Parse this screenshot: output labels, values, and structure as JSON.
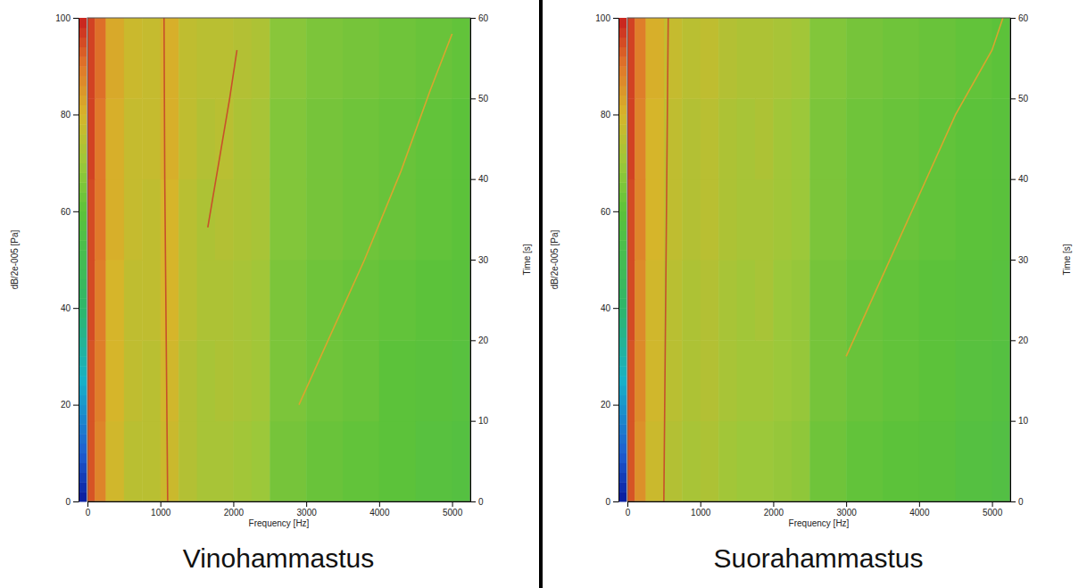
{
  "chart_data": [
    {
      "type": "heatmap",
      "title": "Vinohammastus",
      "x_label": "Frequency [Hz]",
      "y_label": "Time [s]",
      "colorbar_label": "dB/2e-005 [Pa]",
      "xlim": [
        0,
        5250
      ],
      "xticks": [
        0,
        1000,
        2000,
        3000,
        4000,
        5000
      ],
      "ylim": [
        0,
        60
      ],
      "yticks": [
        0,
        10,
        20,
        30,
        40,
        50,
        60
      ],
      "colorbar_range": [
        0,
        100
      ],
      "colorbar_ticks": [
        0,
        20,
        40,
        60,
        80,
        100
      ],
      "x_edges": [
        0,
        100,
        250,
        500,
        750,
        1000,
        1250,
        1500,
        1750,
        2000,
        2250,
        2500,
        3000,
        3500,
        4000,
        4500,
        5000,
        5250
      ],
      "y_edges": [
        0,
        10,
        20,
        30,
        40,
        50,
        60
      ],
      "cells": [
        [
          94,
          88,
          79,
          75,
          75,
          78,
          74,
          72,
          72,
          71,
          70,
          64,
          62,
          61,
          60,
          58,
          57
        ],
        [
          94,
          89,
          80,
          76,
          75,
          79,
          74,
          72,
          73,
          72,
          71,
          65,
          63,
          62,
          60,
          59,
          58
        ],
        [
          95,
          89,
          80,
          76,
          76,
          80,
          75,
          73,
          73,
          72,
          71,
          65,
          63,
          62,
          61,
          60,
          59
        ],
        [
          95,
          90,
          81,
          77,
          76,
          80,
          75,
          73,
          74,
          73,
          72,
          66,
          64,
          63,
          62,
          61,
          60
        ],
        [
          96,
          90,
          81,
          77,
          77,
          81,
          76,
          74,
          75,
          73,
          72,
          66,
          64,
          63,
          62,
          61,
          60
        ],
        [
          96,
          91,
          82,
          78,
          77,
          81,
          76,
          75,
          75,
          74,
          73,
          67,
          65,
          64,
          63,
          62,
          61
        ]
      ],
      "series": [
        {
          "color": "#d9a52e",
          "x": [
            2900,
            3300,
            3800,
            4300,
            4700,
            5000
          ],
          "values": [
            12,
            20,
            30,
            41,
            51,
            58
          ]
        },
        {
          "color": "#c8502a",
          "x": [
            1650,
            1800,
            1950,
            2050
          ],
          "values": [
            34,
            42,
            50,
            56
          ]
        },
        {
          "color": "#c8502a",
          "x": [
            1100,
            1080,
            1060,
            1050
          ],
          "values": [
            0,
            20,
            40,
            60
          ]
        }
      ]
    },
    {
      "type": "heatmap",
      "title": "Suorahammastus",
      "x_label": "Frequency [Hz]",
      "y_label": "Time [s]",
      "colorbar_label": "dB/2e-005 [Pa]",
      "xlim": [
        0,
        5250
      ],
      "xticks": [
        0,
        1000,
        2000,
        3000,
        4000,
        5000
      ],
      "ylim": [
        0,
        60
      ],
      "yticks": [
        0,
        10,
        20,
        30,
        40,
        50,
        60
      ],
      "colorbar_range": [
        0,
        100
      ],
      "colorbar_ticks": [
        0,
        20,
        40,
        60,
        80,
        100
      ],
      "x_edges": [
        0,
        100,
        250,
        500,
        750,
        1000,
        1250,
        1500,
        1750,
        2000,
        2250,
        2500,
        3000,
        3500,
        4000,
        4500,
        5000,
        5250
      ],
      "y_edges": [
        0,
        10,
        20,
        30,
        40,
        50,
        60
      ],
      "cells": [
        [
          94,
          86,
          78,
          74,
          72,
          73,
          71,
          70,
          70,
          69,
          68,
          63,
          61,
          60,
          59,
          57,
          56
        ],
        [
          94,
          87,
          79,
          75,
          73,
          74,
          72,
          71,
          71,
          70,
          69,
          64,
          62,
          61,
          60,
          58,
          57
        ],
        [
          95,
          87,
          79,
          75,
          73,
          74,
          72,
          71,
          72,
          70,
          69,
          64,
          62,
          61,
          60,
          59,
          58
        ],
        [
          95,
          88,
          80,
          76,
          74,
          75,
          73,
          72,
          72,
          71,
          70,
          65,
          63,
          62,
          61,
          60,
          59
        ],
        [
          96,
          88,
          80,
          76,
          74,
          75,
          73,
          72,
          73,
          71,
          70,
          65,
          63,
          62,
          61,
          60,
          59
        ],
        [
          96,
          89,
          81,
          77,
          75,
          76,
          74,
          73,
          73,
          72,
          71,
          66,
          64,
          63,
          62,
          61,
          60
        ]
      ],
      "series": [
        {
          "color": "#d9a52e",
          "x": [
            3000,
            3500,
            4000,
            4500,
            5000,
            5150
          ],
          "values": [
            18,
            28,
            38,
            48,
            56,
            60
          ]
        },
        {
          "color": "#c8502a",
          "x": [
            500,
            520,
            540,
            560
          ],
          "values": [
            0,
            20,
            40,
            60
          ]
        }
      ]
    }
  ]
}
